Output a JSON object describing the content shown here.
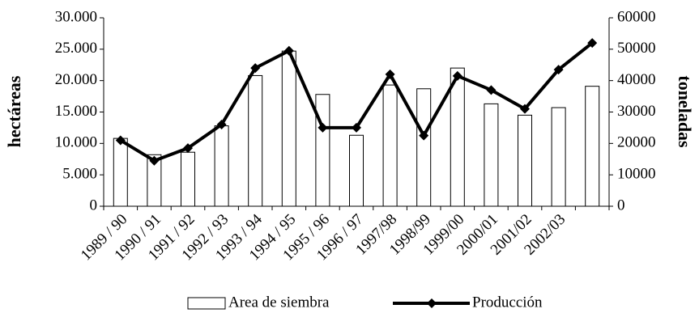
{
  "chart_data": {
    "type": "bar_line",
    "categories": [
      "1989 / 90",
      "1990 / 91",
      "1991 / 92",
      "1992 / 93",
      "1993 / 94",
      "1994 / 95",
      "1995 / 96",
      "1996 / 97",
      "1997/98",
      "1998/99",
      "1999/00",
      "2000/01",
      "2001/02",
      "2002/03",
      null
    ],
    "ylabel": "hectáreas",
    "y2label": "toneladas",
    "ylim": [
      0,
      30000
    ],
    "yticks": [
      0,
      {
        "value": 5000,
        "label": "5.000"
      },
      {
        "value": 10000,
        "label": "10.000"
      },
      {
        "value": 15000,
        "label": "15.000"
      },
      {
        "value": 20000,
        "label": "20.000"
      },
      {
        "value": 25000,
        "label": "25.000"
      },
      {
        "value": 30000,
        "label": "30.000"
      }
    ],
    "y2lim": [
      0,
      60000
    ],
    "y2ticks": [
      0,
      10000,
      20000,
      30000,
      40000,
      50000,
      60000
    ],
    "legend": "bottom",
    "series": [
      {
        "name": "Area de siembra",
        "type": "bar",
        "color": "#ffffff",
        "values": [
          10800,
          8200,
          8600,
          12800,
          20800,
          24700,
          17800,
          11300,
          19300,
          18700,
          22000,
          16300,
          14500,
          15700,
          19100
        ]
      },
      {
        "name": "Producción",
        "type": "line",
        "axis": "y2",
        "color": "#000000",
        "values": [
          21000,
          14500,
          18500,
          26000,
          44000,
          49500,
          25000,
          25000,
          42000,
          22500,
          41500,
          37000,
          31000,
          43500,
          52000
        ]
      }
    ]
  }
}
